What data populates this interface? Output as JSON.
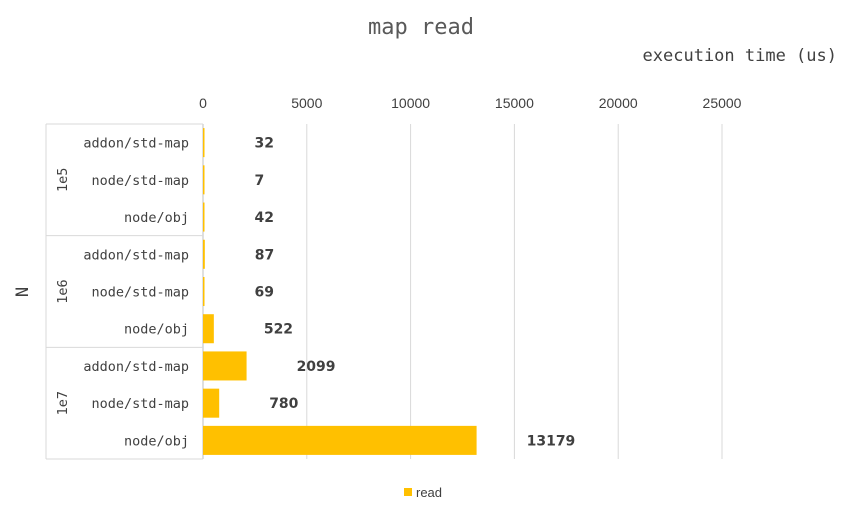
{
  "chart_data": {
    "type": "bar",
    "orientation": "horizontal",
    "title": "map read",
    "xlabel": "execution time (us)",
    "ylabel": "N",
    "xlim": [
      0,
      25000
    ],
    "x_ticks": [
      "0",
      "5000",
      "10000",
      "15000",
      "20000",
      "25000"
    ],
    "x_axis_position": "top",
    "grid": true,
    "legend_position": "bottom",
    "groups": [
      {
        "name": "1e5",
        "categories": [
          "addon/std-map",
          "node/std-map",
          "node/obj"
        ],
        "values": [
          32,
          7,
          42
        ]
      },
      {
        "name": "1e6",
        "categories": [
          "addon/std-map",
          "node/std-map",
          "node/obj"
        ],
        "values": [
          87,
          69,
          522
        ]
      },
      {
        "name": "1e7",
        "categories": [
          "addon/std-map",
          "node/std-map",
          "node/obj"
        ],
        "values": [
          2099,
          780,
          13179
        ]
      }
    ],
    "series": [
      {
        "name": "read",
        "color": "#FFC000"
      }
    ],
    "data_labels": true
  }
}
